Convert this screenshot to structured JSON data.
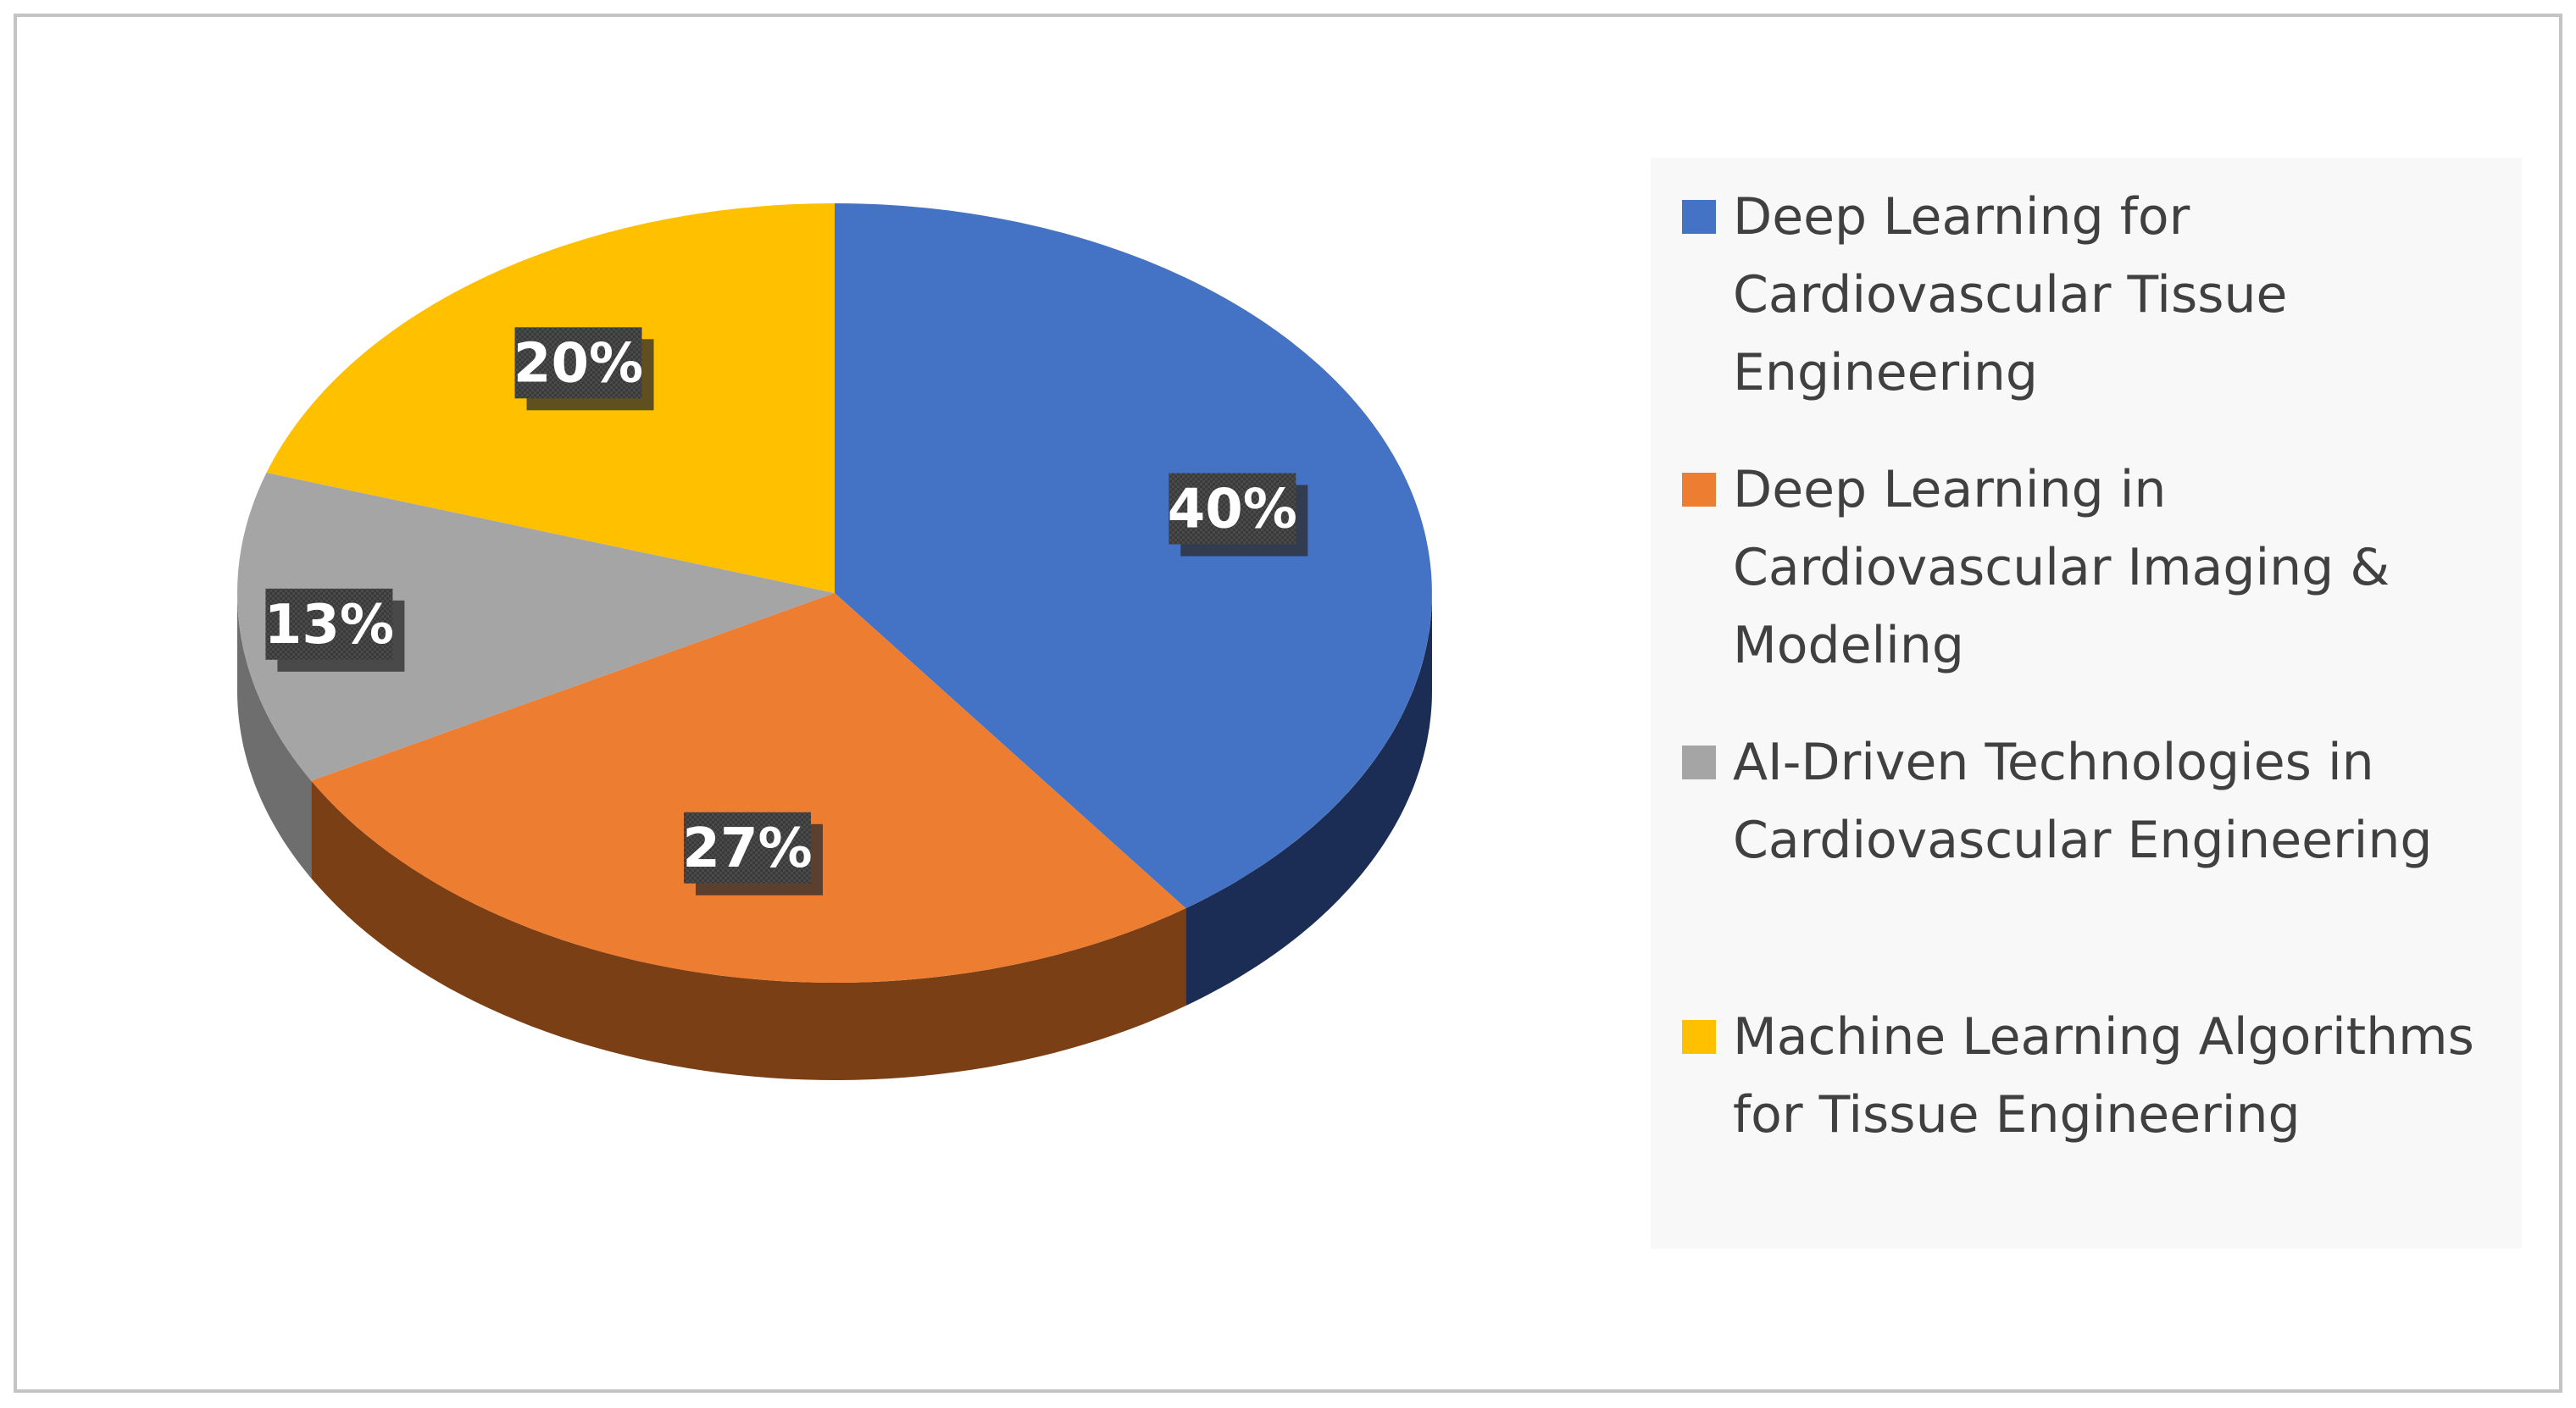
{
  "chart_data": {
    "type": "pie",
    "style": "3d",
    "title": "",
    "slices": [
      {
        "name": "Deep Learning for Cardiovascular Tissue Engineering",
        "value": 40,
        "label": "40%",
        "color": "#4472C4",
        "side_color": "#1B2D54",
        "legend_lines": [
          "Deep Learning for",
          "Cardiovascular Tissue",
          "Engineering"
        ]
      },
      {
        "name": "Deep Learning in Cardiovascular Imaging & Modeling",
        "value": 27,
        "label": "27%",
        "color": "#ED7D31",
        "side_color": "#7A3F14",
        "legend_lines": [
          "Deep Learning in",
          "Cardiovascular Imaging &",
          "Modeling"
        ]
      },
      {
        "name": "AI-Driven Technologies in Cardiovascular Engineering",
        "value": 13,
        "label": "13%",
        "color": "#A5A5A5",
        "side_color": "#6E6E6E",
        "legend_lines": [
          "AI-Driven Technologies in",
          "Cardiovascular Engineering"
        ]
      },
      {
        "name": "Machine Learning Algorithms for Tissue Engineering",
        "value": 20,
        "label": "20%",
        "color": "#FFC000",
        "side_color": "#8C6A00",
        "legend_lines": [
          "Machine Learning Algorithms",
          "for Tissue Engineering"
        ]
      }
    ],
    "legend_position": "right",
    "data_label_style": "dark box, white bold text"
  }
}
